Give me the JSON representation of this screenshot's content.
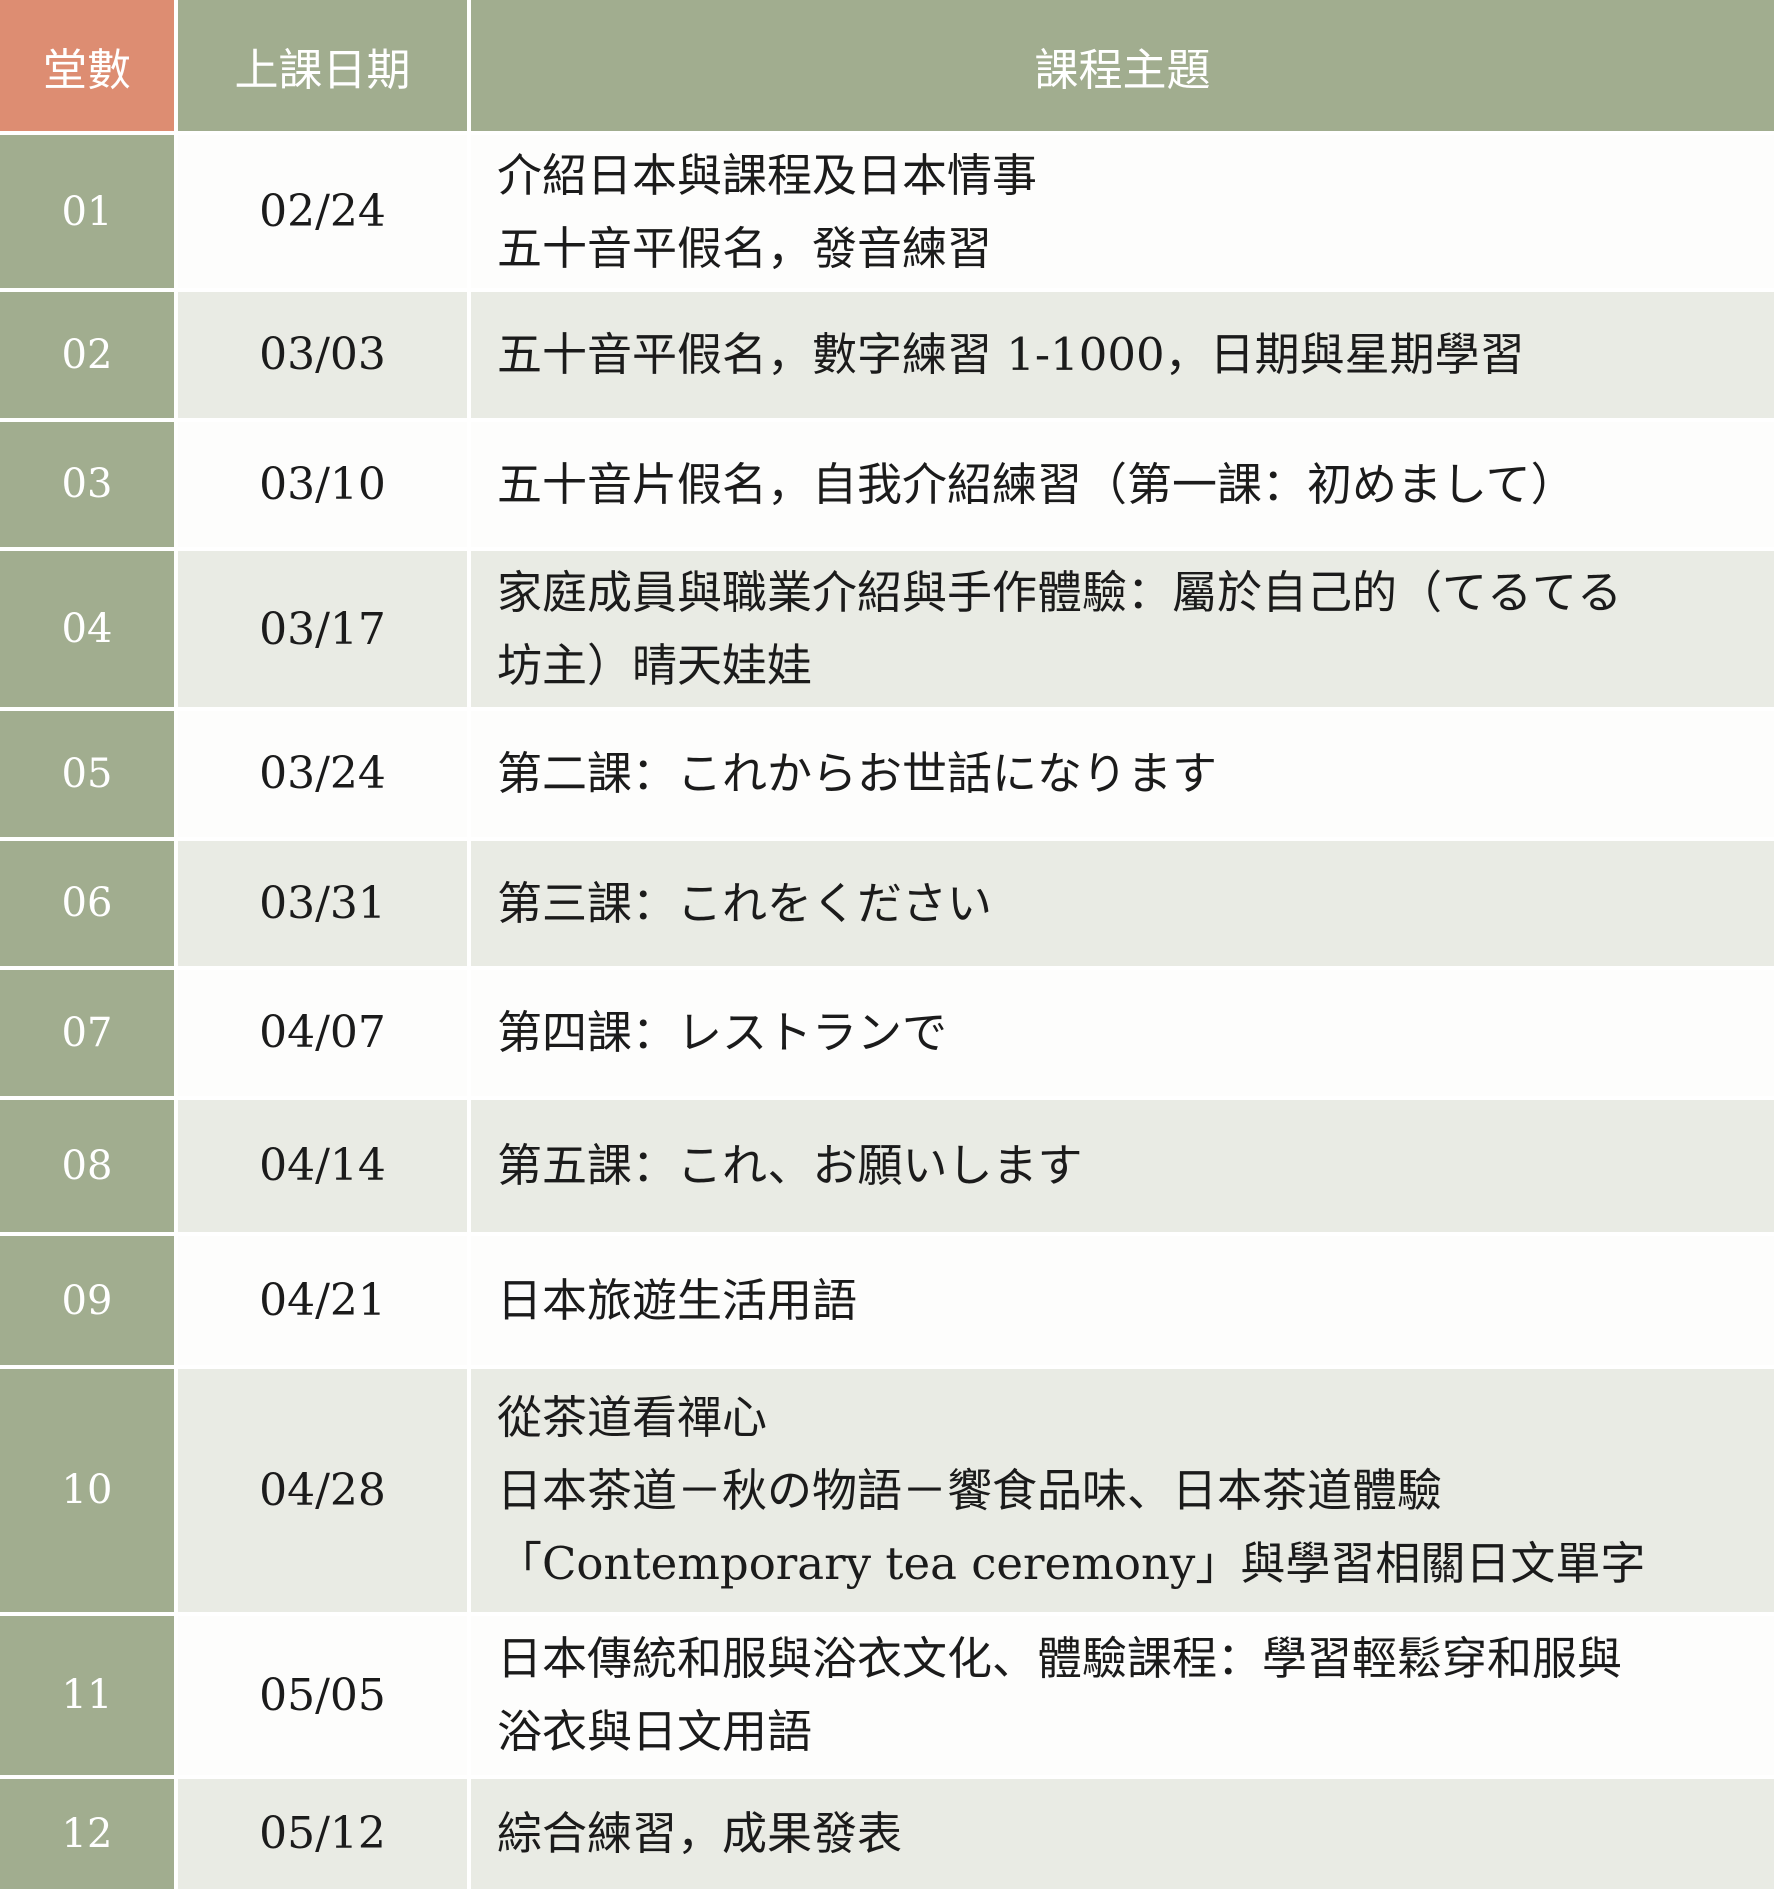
{
  "table": {
    "columns": [
      "堂數",
      "上課日期",
      "課程主題"
    ],
    "rows": [
      {
        "num": "01",
        "date": "02/24",
        "topic": [
          "介紹日本與課程及日本情事",
          "五十音平假名，發音練習"
        ]
      },
      {
        "num": "02",
        "date": "03/03",
        "topic": [
          "五十音平假名，數字練習 1-1000，日期與星期學習"
        ]
      },
      {
        "num": "03",
        "date": "03/10",
        "topic": [
          "五十音片假名，自我介紹練習（第一課：初めまして）"
        ]
      },
      {
        "num": "04",
        "date": "03/17",
        "topic": [
          "家庭成員與職業介紹與手作體驗：屬於自己的（てるてる",
          "坊主）晴天娃娃"
        ]
      },
      {
        "num": "05",
        "date": "03/24",
        "topic": [
          "第二課：これからお世話になります"
        ]
      },
      {
        "num": "06",
        "date": "03/31",
        "topic": [
          "第三課：これをください"
        ]
      },
      {
        "num": "07",
        "date": "04/07",
        "topic": [
          "第四課：レストランで"
        ]
      },
      {
        "num": "08",
        "date": "04/14",
        "topic": [
          "第五課：これ、お願いします"
        ]
      },
      {
        "num": "09",
        "date": "04/21",
        "topic": [
          "日本旅遊生活用語"
        ]
      },
      {
        "num": "10",
        "date": "04/28",
        "topic": [
          "從茶道看禪心",
          "日本茶道－秋の物語－饗食品味、日本茶道體驗",
          "「Contemporary tea ceremony」與學習相關日文單字"
        ]
      },
      {
        "num": "11",
        "date": "05/05",
        "topic": [
          "日本傳統和服與浴衣文化、體驗課程：學習輕鬆穿和服與",
          "浴衣與日文用語"
        ]
      },
      {
        "num": "12",
        "date": "05/12",
        "topic": [
          "綜合練習，成果發表"
        ]
      }
    ],
    "colors": {
      "header_accent_salmon": "#DD8D72",
      "sage_green": "#A1AD8F",
      "alt_row_gray": "#E9EBE4",
      "plain_row_white": "#FDFDFC",
      "text_dark": "#1B1B1B",
      "text_light": "#FFFFFF",
      "gridline": "#FFFFFF"
    }
  }
}
